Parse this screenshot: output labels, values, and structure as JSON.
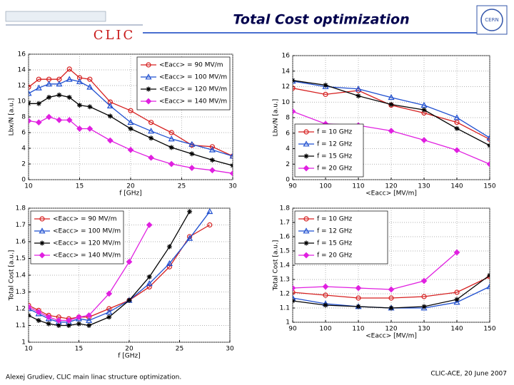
{
  "slide": {
    "title": "Total Cost optimization",
    "logo_left": "CLIC",
    "logo_right": "CERN",
    "footer_left": "Alexej Grudiev, CLIC main linac structure optimization.",
    "footer_right": "CLIC-ACE, 20 June 2007"
  },
  "chart_data": [
    {
      "type": "line",
      "xlabel": "f [GHz]",
      "ylabel": "Lbx/N [a.u.]",
      "grid": true,
      "legend": "upper right",
      "x": [
        10,
        11,
        12,
        13,
        14,
        15,
        16,
        18,
        20,
        22,
        24,
        26,
        28,
        30
      ],
      "xlim": [
        10,
        30
      ],
      "xticks": [
        10,
        15,
        20,
        25,
        30
      ],
      "ylim": [
        0,
        16
      ],
      "yticks": [
        0,
        2,
        4,
        6,
        8,
        10,
        12,
        14,
        16
      ],
      "series": [
        {
          "name": "<Eacc> = 90 MV/m",
          "color": "#d62020",
          "marker": "circle",
          "values": [
            11.8,
            12.8,
            12.8,
            12.8,
            14.1,
            13.0,
            12.8,
            9.9,
            8.8,
            7.3,
            6.0,
            4.4,
            4.2,
            3.0
          ]
        },
        {
          "name": "<Eacc> = 100 MV/m",
          "color": "#1f4fd0",
          "marker": "triangle",
          "values": [
            11.0,
            11.7,
            12.2,
            12.2,
            12.8,
            12.5,
            11.8,
            9.4,
            7.3,
            6.2,
            5.2,
            4.5,
            3.8,
            3.0
          ]
        },
        {
          "name": "<Eacc> = 120 MV/m",
          "color": "#000000",
          "marker": "star",
          "values": [
            9.7,
            9.7,
            10.5,
            10.8,
            10.5,
            9.5,
            9.3,
            8.1,
            6.5,
            5.3,
            4.1,
            3.3,
            2.5,
            1.8
          ]
        },
        {
          "name": "<Eacc> = 140 MV/m",
          "color": "#e020e0",
          "marker": "diamond",
          "values": [
            7.5,
            7.3,
            8.0,
            7.6,
            7.6,
            6.5,
            6.5,
            5.0,
            3.8,
            2.8,
            2.0,
            1.5,
            1.2,
            0.8
          ]
        }
      ]
    },
    {
      "type": "line",
      "xlabel": "<Eacc> [MV/m]",
      "ylabel": "Lbx/N [a.u.]",
      "grid": true,
      "legend": "lower left",
      "x": [
        90,
        100,
        110,
        120,
        130,
        140,
        150
      ],
      "xlim": [
        90,
        150
      ],
      "xticks": [
        90,
        100,
        110,
        120,
        130,
        140,
        150
      ],
      "ylim": [
        0,
        16
      ],
      "yticks": [
        0,
        2,
        4,
        6,
        8,
        10,
        12,
        14,
        16
      ],
      "series": [
        {
          "name": "f = 10 GHz",
          "color": "#d62020",
          "marker": "circle",
          "values": [
            11.8,
            11.0,
            11.5,
            9.6,
            8.6,
            7.4,
            5.2
          ]
        },
        {
          "name": "f = 12 GHz",
          "color": "#1f4fd0",
          "marker": "triangle",
          "values": [
            12.7,
            12.0,
            11.7,
            10.6,
            9.6,
            8.0,
            5.4
          ]
        },
        {
          "name": "f = 15 GHz",
          "color": "#000000",
          "marker": "star",
          "values": [
            12.8,
            12.2,
            10.8,
            9.7,
            9.0,
            6.6,
            4.4
          ]
        },
        {
          "name": "f = 20 GHz",
          "color": "#e020e0",
          "marker": "diamond",
          "values": [
            8.8,
            7.2,
            7.0,
            6.3,
            5.1,
            3.8,
            2.0
          ]
        }
      ]
    },
    {
      "type": "line",
      "xlabel": "f [GHz]",
      "ylabel": "Total Cost [a.u.]",
      "grid": true,
      "legend": "upper left",
      "x": [
        10,
        11,
        12,
        13,
        14,
        15,
        16,
        18,
        20,
        22,
        24,
        26,
        28,
        30
      ],
      "xlim": [
        10,
        30
      ],
      "xticks": [
        10,
        15,
        20,
        25,
        30
      ],
      "ylim": [
        1,
        1.8
      ],
      "yticks": [
        1,
        1.1,
        1.2,
        1.3,
        1.4,
        1.5,
        1.6,
        1.7,
        1.8
      ],
      "series": [
        {
          "name": "<Eacc> = 90 MV/m",
          "color": "#d62020",
          "marker": "circle",
          "values": [
            1.22,
            1.19,
            1.16,
            1.15,
            1.14,
            1.15,
            1.15,
            1.2,
            1.25,
            1.33,
            1.45,
            1.63,
            1.7,
            null
          ]
        },
        {
          "name": "<Eacc> = 100 MV/m",
          "color": "#1f4fd0",
          "marker": "triangle",
          "values": [
            1.2,
            1.17,
            1.14,
            1.12,
            1.12,
            1.14,
            1.13,
            1.18,
            1.25,
            1.35,
            1.47,
            1.62,
            1.78,
            null
          ]
        },
        {
          "name": "<Eacc> = 120 MV/m",
          "color": "#000000",
          "marker": "star",
          "values": [
            1.16,
            1.13,
            1.11,
            1.1,
            1.1,
            1.11,
            1.1,
            1.15,
            1.25,
            1.39,
            1.57,
            1.78,
            null,
            null
          ]
        },
        {
          "name": "<Eacc> = 140 MV/m",
          "color": "#e020e0",
          "marker": "diamond",
          "values": [
            1.21,
            1.18,
            1.15,
            1.13,
            1.13,
            1.15,
            1.16,
            1.29,
            1.48,
            1.7,
            null,
            null,
            null,
            null
          ]
        }
      ]
    },
    {
      "type": "line",
      "xlabel": "<Eacc> [MV/m]",
      "ylabel": "Total Cost [a.u.]",
      "grid": true,
      "legend": "upper left",
      "x": [
        90,
        100,
        110,
        120,
        130,
        140,
        150
      ],
      "xlim": [
        90,
        150
      ],
      "xticks": [
        90,
        100,
        110,
        120,
        130,
        140,
        150
      ],
      "ylim": [
        1,
        1.8
      ],
      "yticks": [
        1,
        1.1,
        1.2,
        1.3,
        1.4,
        1.5,
        1.6,
        1.7,
        1.8
      ],
      "series": [
        {
          "name": "f = 10 GHz",
          "color": "#d62020",
          "marker": "circle",
          "values": [
            1.21,
            1.19,
            1.17,
            1.17,
            1.18,
            1.21,
            1.32
          ]
        },
        {
          "name": "f = 12 GHz",
          "color": "#1f4fd0",
          "marker": "triangle",
          "values": [
            1.17,
            1.13,
            1.11,
            1.1,
            1.1,
            1.14,
            1.25
          ]
        },
        {
          "name": "f = 15 GHz",
          "color": "#000000",
          "marker": "star",
          "values": [
            1.15,
            1.12,
            1.11,
            1.1,
            1.11,
            1.16,
            1.33
          ]
        },
        {
          "name": "f = 20 GHz",
          "color": "#e020e0",
          "marker": "diamond",
          "values": [
            1.24,
            1.25,
            1.24,
            1.23,
            1.29,
            1.49,
            null
          ]
        }
      ]
    }
  ]
}
